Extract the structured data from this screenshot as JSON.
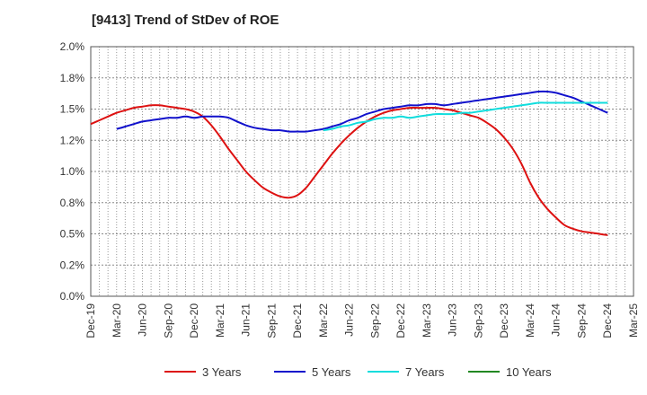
{
  "title": "[9413]  Trend of StDev of ROE",
  "chart_data": {
    "type": "line",
    "title": "[9413]  Trend of StDev of ROE",
    "xlabel": "",
    "ylabel": "",
    "y_ticks": [
      "0.0%",
      "0.2%",
      "0.5%",
      "0.8%",
      "1.0%",
      "1.2%",
      "1.5%",
      "1.8%",
      "2.0%"
    ],
    "ylim": [
      0,
      2.0
    ],
    "x_ticks": [
      "Dec-19",
      "Mar-20",
      "Jun-20",
      "Sep-20",
      "Dec-20",
      "Mar-21",
      "Jun-21",
      "Sep-21",
      "Dec-21",
      "Mar-22",
      "Jun-22",
      "Sep-22",
      "Dec-22",
      "Mar-23",
      "Jun-23",
      "Sep-23",
      "Dec-23",
      "Mar-24",
      "Jun-24",
      "Sep-24",
      "Dec-24",
      "Mar-25"
    ],
    "grid": true,
    "legend_position": "bottom",
    "series": [
      {
        "name": "3 Years",
        "color": "#dd1111",
        "x": [
          "Dec-19",
          "Jan-20",
          "Feb-20",
          "Mar-20",
          "Apr-20",
          "May-20",
          "Jun-20",
          "Jul-20",
          "Aug-20",
          "Sep-20",
          "Oct-20",
          "Nov-20",
          "Dec-20",
          "Jan-21",
          "Feb-21",
          "Mar-21",
          "Apr-21",
          "May-21",
          "Jun-21",
          "Jul-21",
          "Aug-21",
          "Sep-21",
          "Oct-21",
          "Nov-21",
          "Dec-21",
          "Jan-22",
          "Feb-22",
          "Mar-22",
          "Apr-22",
          "May-22",
          "Jun-22",
          "Jul-22",
          "Aug-22",
          "Sep-22",
          "Oct-22",
          "Nov-22",
          "Dec-22",
          "Jan-23",
          "Feb-23",
          "Mar-23",
          "Apr-23",
          "May-23",
          "Jun-23",
          "Jul-23",
          "Aug-23",
          "Sep-23",
          "Oct-23",
          "Nov-23",
          "Dec-23",
          "Jan-24",
          "Feb-24",
          "Mar-24",
          "Apr-24",
          "May-24",
          "Jun-24",
          "Jul-24",
          "Aug-24",
          "Sep-24",
          "Oct-24",
          "Nov-24",
          "Dec-24"
        ],
        "values": [
          1.38,
          1.41,
          1.44,
          1.47,
          1.49,
          1.51,
          1.52,
          1.53,
          1.53,
          1.52,
          1.51,
          1.5,
          1.48,
          1.44,
          1.37,
          1.28,
          1.18,
          1.09,
          1.0,
          0.93,
          0.87,
          0.83,
          0.8,
          0.79,
          0.81,
          0.87,
          0.96,
          1.05,
          1.14,
          1.22,
          1.29,
          1.35,
          1.4,
          1.44,
          1.47,
          1.49,
          1.5,
          1.51,
          1.51,
          1.51,
          1.51,
          1.5,
          1.49,
          1.47,
          1.45,
          1.43,
          1.39,
          1.34,
          1.27,
          1.18,
          1.06,
          0.91,
          0.79,
          0.7,
          0.63,
          0.57,
          0.54,
          0.52,
          0.51,
          0.5,
          0.49
        ]
      },
      {
        "name": "5 Years",
        "color": "#1111cc",
        "x": [
          "Mar-20",
          "Apr-20",
          "May-20",
          "Jun-20",
          "Jul-20",
          "Aug-20",
          "Sep-20",
          "Oct-20",
          "Nov-20",
          "Dec-20",
          "Jan-21",
          "Feb-21",
          "Mar-21",
          "Apr-21",
          "May-21",
          "Jun-21",
          "Jul-21",
          "Aug-21",
          "Sep-21",
          "Oct-21",
          "Nov-21",
          "Dec-21",
          "Jan-22",
          "Feb-22",
          "Mar-22",
          "Apr-22",
          "May-22",
          "Jun-22",
          "Jul-22",
          "Aug-22",
          "Sep-22",
          "Oct-22",
          "Nov-22",
          "Dec-22",
          "Jan-23",
          "Feb-23",
          "Mar-23",
          "Apr-23",
          "May-23",
          "Jun-23",
          "Jul-23",
          "Aug-23",
          "Sep-23",
          "Oct-23",
          "Nov-23",
          "Dec-23",
          "Jan-24",
          "Feb-24",
          "Mar-24",
          "Apr-24",
          "May-24",
          "Jun-24",
          "Jul-24",
          "Aug-24",
          "Sep-24",
          "Oct-24",
          "Nov-24",
          "Dec-24"
        ],
        "values": [
          1.34,
          1.36,
          1.38,
          1.4,
          1.41,
          1.42,
          1.43,
          1.43,
          1.44,
          1.43,
          1.44,
          1.44,
          1.44,
          1.43,
          1.4,
          1.37,
          1.35,
          1.34,
          1.33,
          1.33,
          1.32,
          1.32,
          1.32,
          1.33,
          1.34,
          1.36,
          1.38,
          1.41,
          1.43,
          1.46,
          1.48,
          1.5,
          1.51,
          1.52,
          1.53,
          1.53,
          1.54,
          1.54,
          1.53,
          1.54,
          1.55,
          1.56,
          1.57,
          1.58,
          1.59,
          1.6,
          1.61,
          1.62,
          1.63,
          1.64,
          1.64,
          1.63,
          1.61,
          1.59,
          1.56,
          1.53,
          1.5,
          1.47
        ]
      },
      {
        "name": "7 Years",
        "color": "#11dddd",
        "x": [
          "Mar-22",
          "Apr-22",
          "May-22",
          "Jun-22",
          "Jul-22",
          "Aug-22",
          "Sep-22",
          "Oct-22",
          "Nov-22",
          "Dec-22",
          "Jan-23",
          "Feb-23",
          "Mar-23",
          "Apr-23",
          "May-23",
          "Jun-23",
          "Jul-23",
          "Aug-23",
          "Sep-23",
          "Oct-23",
          "Nov-23",
          "Dec-23",
          "Jan-24",
          "Feb-24",
          "Mar-24",
          "Apr-24",
          "May-24",
          "Jun-24",
          "Jul-24",
          "Aug-24",
          "Sep-24",
          "Oct-24",
          "Nov-24",
          "Dec-24"
        ],
        "values": [
          1.33,
          1.34,
          1.36,
          1.37,
          1.39,
          1.4,
          1.42,
          1.43,
          1.43,
          1.44,
          1.43,
          1.44,
          1.45,
          1.46,
          1.46,
          1.46,
          1.47,
          1.47,
          1.48,
          1.49,
          1.5,
          1.51,
          1.52,
          1.53,
          1.54,
          1.55,
          1.55,
          1.55,
          1.55,
          1.55,
          1.55,
          1.55,
          1.55,
          1.55
        ]
      },
      {
        "name": "10 Years",
        "color": "#228822",
        "x": [],
        "values": []
      }
    ]
  }
}
